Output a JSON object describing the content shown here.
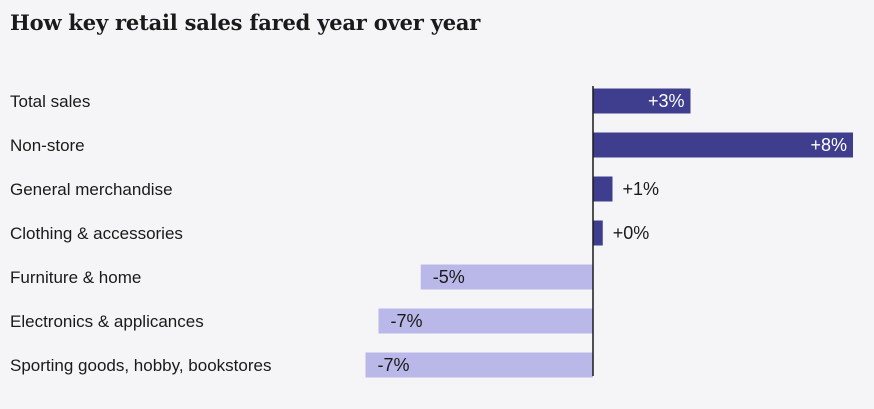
{
  "title": "How key retail sales fared year over year",
  "colors": {
    "positive": "#3f3d8e",
    "negative": "#b9b8e8",
    "axis": "#1a1a1a",
    "background": "#f5f5f7"
  },
  "chart_data": {
    "type": "bar",
    "orientation": "horizontal",
    "title": "How key retail sales fared year over year",
    "categories": [
      "Total sales",
      "Non-store",
      "General merchandise",
      "Clothing & accessories",
      "Furniture & home",
      "Electronics & applicances",
      "Sporting goods, hobby, bookstores"
    ],
    "values": [
      3,
      8,
      0.6,
      0.3,
      -5.3,
      -6.6,
      -7
    ],
    "labels": [
      "+3%",
      "+8%",
      "+1%",
      "+0%",
      "-5%",
      "-7%",
      "-7%"
    ],
    "xlim": [
      -7.1,
      8
    ],
    "grid": false
  }
}
